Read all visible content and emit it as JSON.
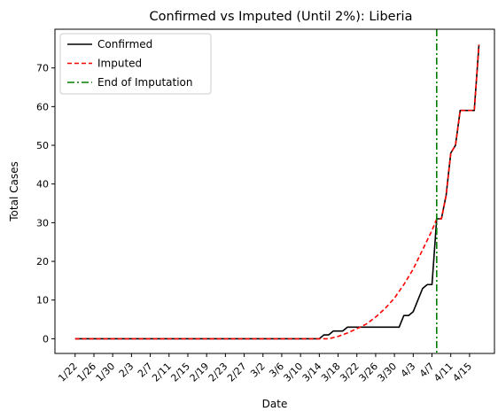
{
  "chart_data": {
    "type": "line",
    "title": "Confirmed vs Imputed (Until 2%): Liberia",
    "xlabel": "Date",
    "ylabel": "Total Cases",
    "ylim": [
      -3.8,
      80
    ],
    "yticks": [
      0,
      10,
      20,
      30,
      40,
      50,
      60,
      70
    ],
    "x_start": "2020-01-22",
    "x_end": "2020-04-16",
    "xticks": [
      "1/22",
      "1/26",
      "1/30",
      "2/3",
      "2/7",
      "2/11",
      "2/15",
      "2/19",
      "2/23",
      "2/27",
      "3/2",
      "3/6",
      "3/10",
      "3/14",
      "3/18",
      "3/22",
      "3/26",
      "3/30",
      "4/3",
      "4/7",
      "4/11",
      "4/15"
    ],
    "legend_position": "top-left",
    "grid": false,
    "series": [
      {
        "name": "Confirmed",
        "color": "#000000",
        "style": "solid",
        "points": [
          [
            "2020-01-22",
            0
          ],
          [
            "2020-03-14",
            0
          ],
          [
            "2020-03-15",
            1
          ],
          [
            "2020-03-16",
            1
          ],
          [
            "2020-03-17",
            2
          ],
          [
            "2020-03-18",
            2
          ],
          [
            "2020-03-19",
            2
          ],
          [
            "2020-03-20",
            3
          ],
          [
            "2020-03-21",
            3
          ],
          [
            "2020-03-22",
            3
          ],
          [
            "2020-03-23",
            3
          ],
          [
            "2020-03-31",
            3
          ],
          [
            "2020-04-01",
            6
          ],
          [
            "2020-04-02",
            6
          ],
          [
            "2020-04-03",
            7
          ],
          [
            "2020-04-04",
            10
          ],
          [
            "2020-04-05",
            13
          ],
          [
            "2020-04-06",
            14
          ],
          [
            "2020-04-07",
            14
          ],
          [
            "2020-04-08",
            31
          ],
          [
            "2020-04-09",
            31
          ],
          [
            "2020-04-10",
            37
          ],
          [
            "2020-04-11",
            48
          ],
          [
            "2020-04-12",
            50
          ],
          [
            "2020-04-13",
            59
          ],
          [
            "2020-04-14",
            59
          ],
          [
            "2020-04-15",
            59
          ],
          [
            "2020-04-16",
            59
          ],
          [
            "2020-04-17",
            76
          ]
        ]
      },
      {
        "name": "Imputed",
        "color": "#ff0000",
        "style": "dashed",
        "points": [
          [
            "2020-01-22",
            0
          ],
          [
            "2020-03-16",
            0
          ],
          [
            "2020-03-18",
            0.6
          ],
          [
            "2020-03-20",
            1.5
          ],
          [
            "2020-03-22",
            2.6
          ],
          [
            "2020-03-24",
            3.8
          ],
          [
            "2020-03-26",
            5.6
          ],
          [
            "2020-03-28",
            7.8
          ],
          [
            "2020-03-30",
            10.5
          ],
          [
            "2020-04-01",
            14
          ],
          [
            "2020-04-03",
            18
          ],
          [
            "2020-04-05",
            23
          ],
          [
            "2020-04-07",
            28
          ],
          [
            "2020-04-08",
            31
          ],
          [
            "2020-04-09",
            31
          ],
          [
            "2020-04-10",
            37
          ],
          [
            "2020-04-11",
            48
          ],
          [
            "2020-04-12",
            50
          ],
          [
            "2020-04-13",
            59
          ],
          [
            "2020-04-14",
            59
          ],
          [
            "2020-04-15",
            59
          ],
          [
            "2020-04-16",
            59
          ],
          [
            "2020-04-17",
            76
          ]
        ]
      }
    ],
    "vline": {
      "name": "End of Imputation",
      "color": "#008000",
      "style": "dashdot",
      "x": "2020-04-08"
    }
  }
}
